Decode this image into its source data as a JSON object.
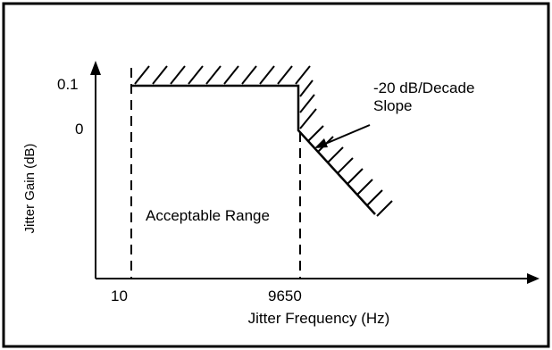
{
  "y_axis": {
    "label": "Jitter Gain (dB)",
    "ticks": [
      "0.1",
      "0"
    ]
  },
  "x_axis": {
    "label": "Jitter Frequency (Hz)",
    "ticks": [
      "10",
      "9650"
    ]
  },
  "annotations": {
    "slope_line1": "-20 dB/Decade",
    "slope_line2": "Slope",
    "region": "Acceptable Range"
  },
  "colors": {
    "ink": "#000000",
    "background": "#ffffff"
  }
}
